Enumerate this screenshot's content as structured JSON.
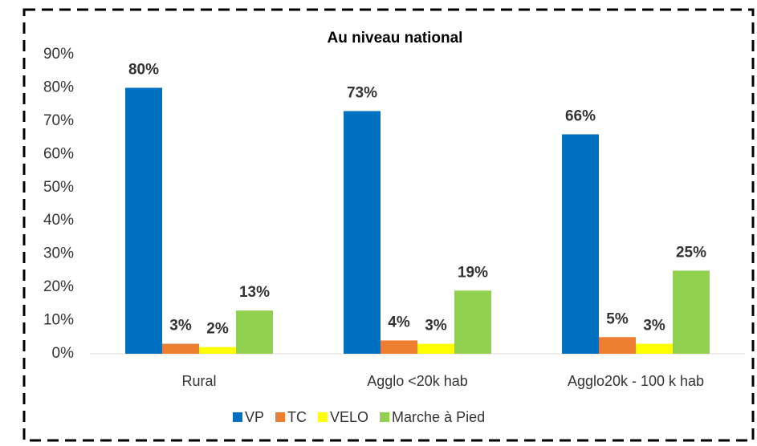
{
  "chart_data": {
    "type": "bar",
    "title": "Au niveau national",
    "categories": [
      "Rural",
      "Agglo <20k hab",
      "Agglo20k - 100 k hab"
    ],
    "series": [
      {
        "name": "VP",
        "color": "#0070c0",
        "values": [
          80,
          73,
          66
        ],
        "value_labels": [
          "80%",
          "73%",
          "66%"
        ]
      },
      {
        "name": "TC",
        "color": "#ed7d31",
        "values": [
          3,
          4,
          5
        ],
        "value_labels": [
          "3%",
          "4%",
          "5%"
        ]
      },
      {
        "name": "VELO",
        "color": "#ffff00",
        "values": [
          2,
          3,
          3
        ],
        "value_labels": [
          "2%",
          "3%",
          "3%"
        ]
      },
      {
        "name": "Marche à Pied",
        "color": "#92d050",
        "values": [
          13,
          19,
          25
        ],
        "value_labels": [
          "13%",
          "19%",
          "25%"
        ]
      }
    ],
    "ylim": [
      0,
      90
    ],
    "yticks": [
      {
        "value": 0,
        "label": "0%"
      },
      {
        "value": 10,
        "label": "10%"
      },
      {
        "value": 20,
        "label": "20%"
      },
      {
        "value": 30,
        "label": "30%"
      },
      {
        "value": 40,
        "label": "40%"
      },
      {
        "value": 50,
        "label": "50%"
      },
      {
        "value": 60,
        "label": "60%"
      },
      {
        "value": 70,
        "label": "70%"
      },
      {
        "value": 80,
        "label": "80%"
      },
      {
        "value": 90,
        "label": "90%"
      }
    ],
    "legend": "bottom"
  }
}
